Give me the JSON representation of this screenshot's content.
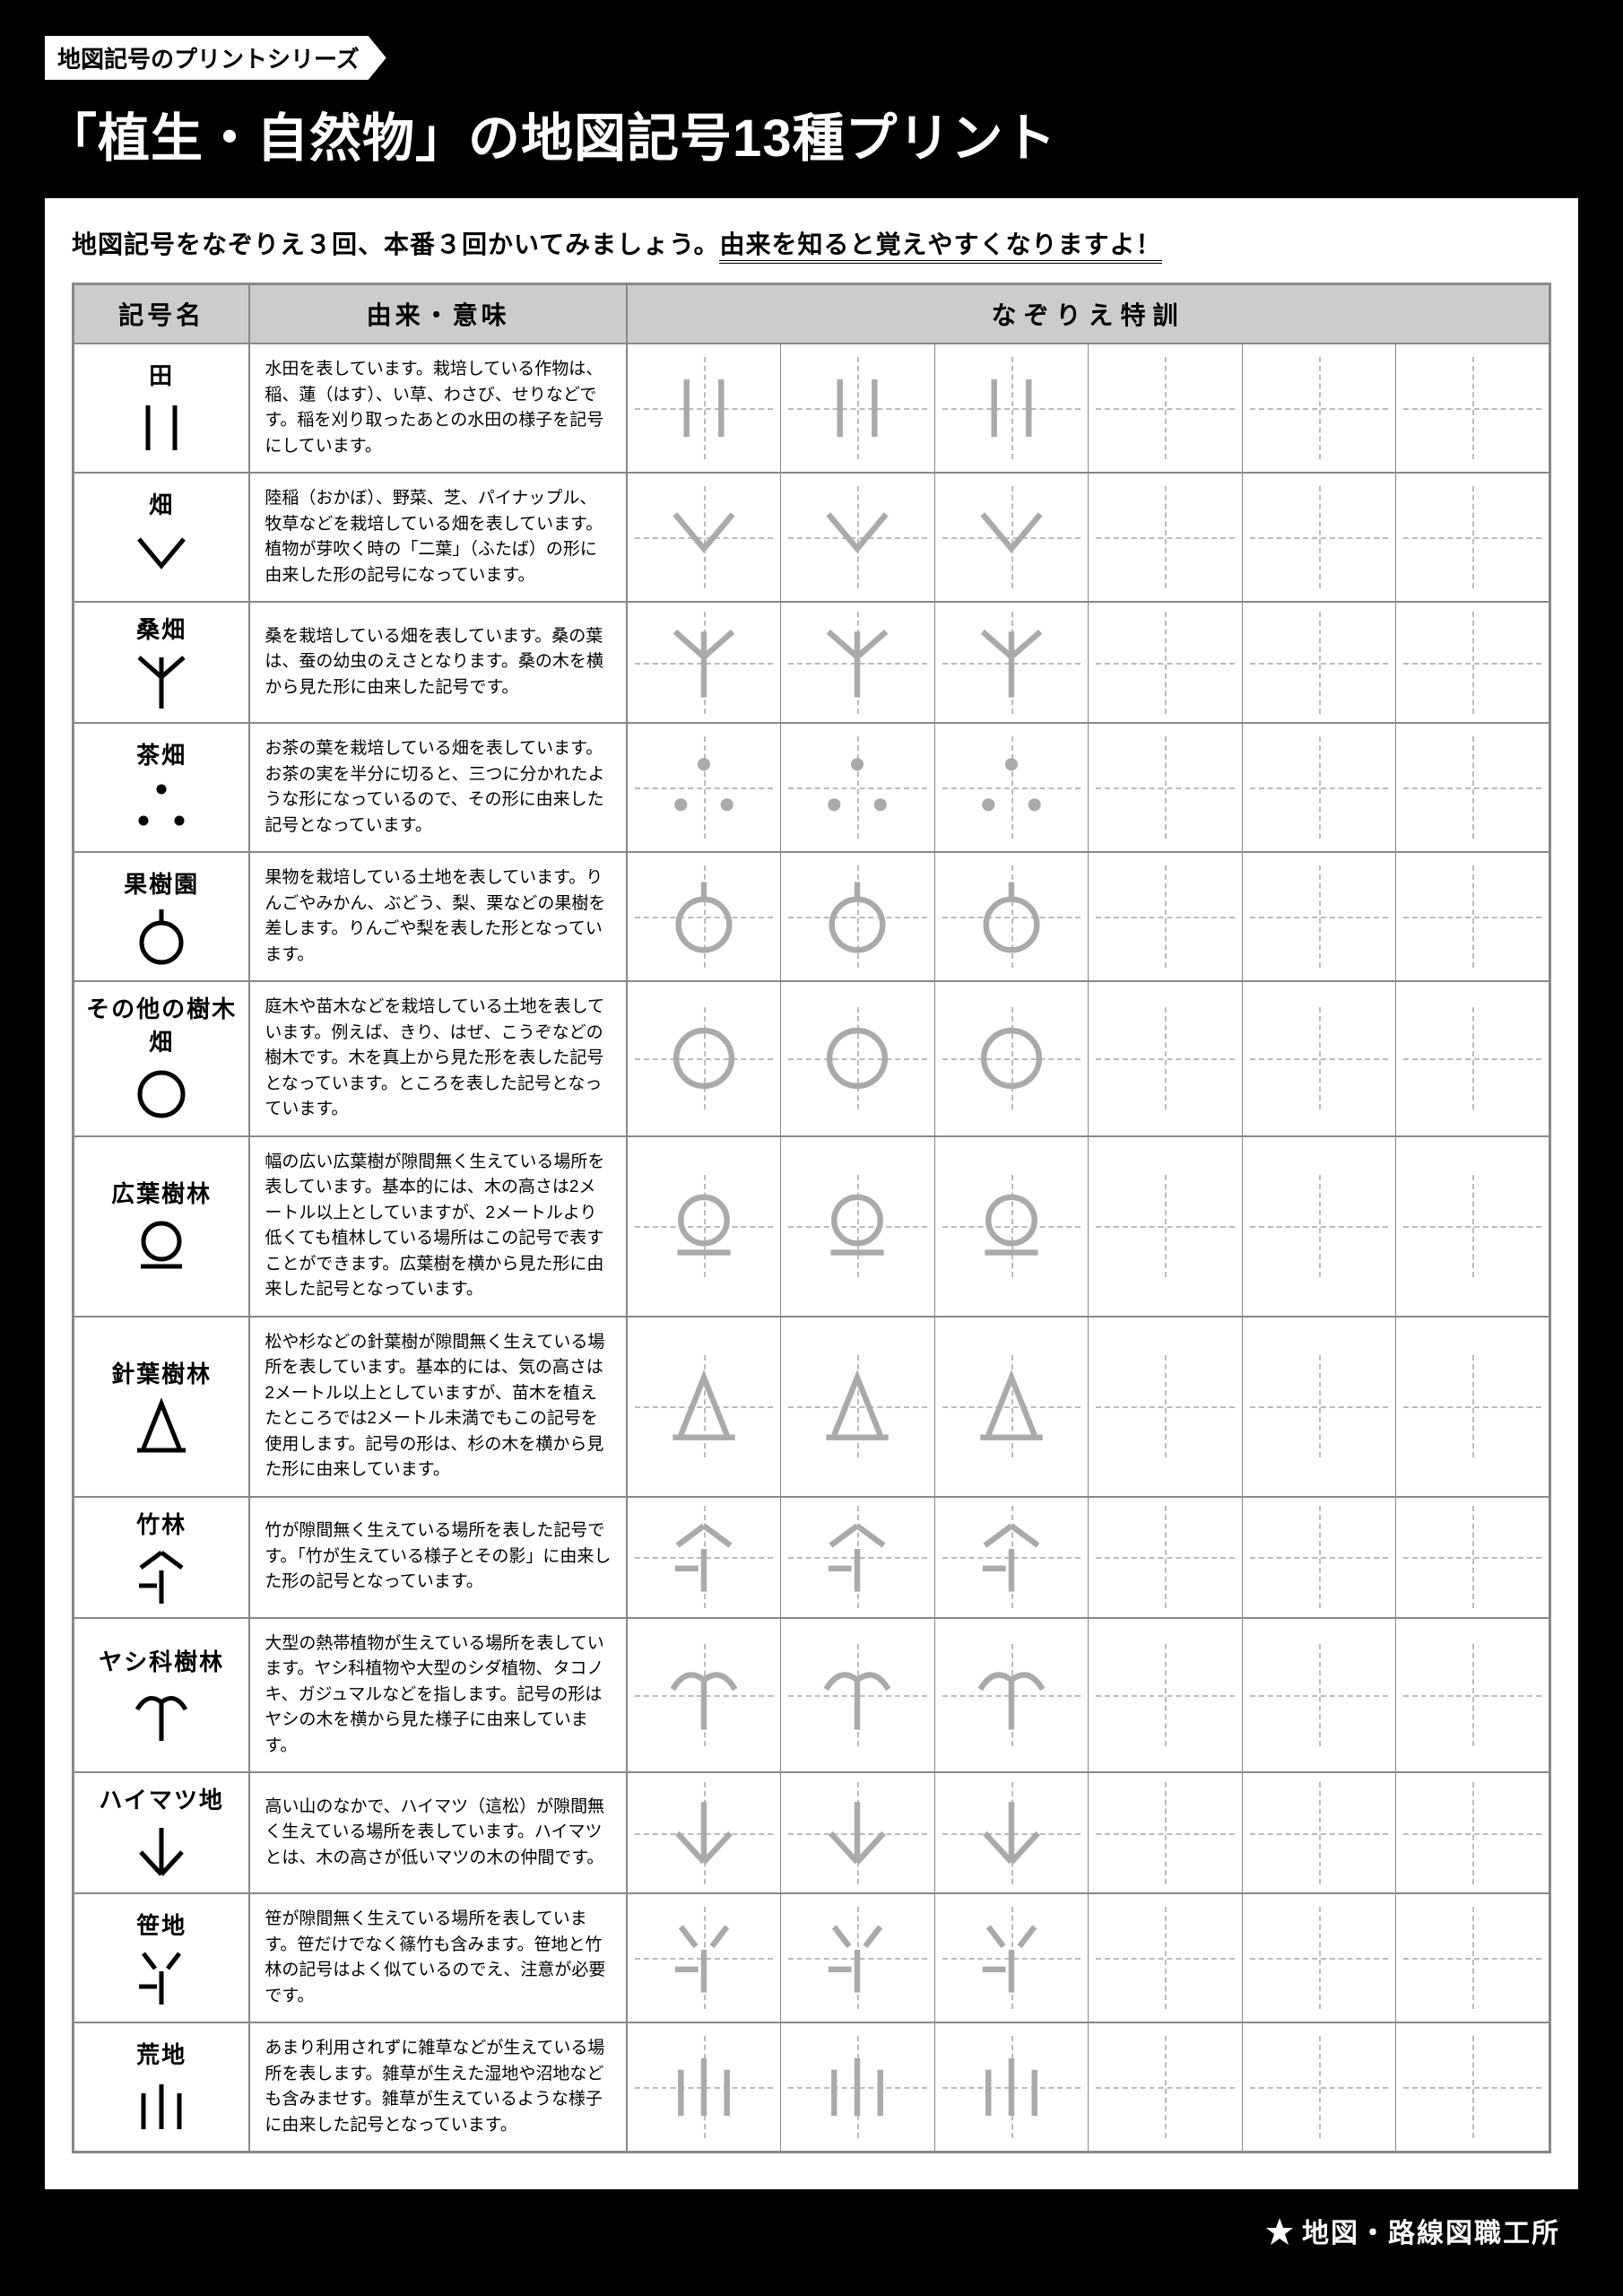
{
  "series_tag": "地図記号のプリントシリーズ",
  "main_title_prefix": "「",
  "main_title_core": "植生・自然物",
  "main_title_suffix": "」の地図記号13種プリント",
  "instruction_plain": "地図記号をなぞりえ３回、本番３回かいてみましょう。",
  "instruction_underline": "由来を知ると覚えやすくなりますよ！",
  "headers": {
    "symbol": "記号名",
    "meaning": "由来・意味",
    "practice": "なぞりえ特訓"
  },
  "footer": "地図・路線図職工所",
  "colors": {
    "symbol_stroke": "#000000",
    "practice_stroke": "#aaaaaa",
    "guide_dash": "#bbbbbb",
    "header_bg": "#cccccc",
    "border": "#888888"
  },
  "rows": [
    {
      "name": "田",
      "svg": "ta",
      "meaning": "水田を表しています。栽培している作物は、稲、蓮（はす）、い草、わさび、せりなどです。稲を刈り取ったあとの水田の様子を記号にしています。"
    },
    {
      "name": "畑",
      "svg": "hatake",
      "meaning": "陸稲（おかぼ）、野菜、芝、パイナップル、牧草などを栽培している畑を表しています。植物が芽吹く時の「二葉」（ふたば）の形に由来した形の記号になっています。"
    },
    {
      "name": "桑畑",
      "svg": "kuwa",
      "meaning": "桑を栽培している畑を表しています。桑の葉は、蚕の幼虫のえさとなります。桑の木を横から見た形に由来した記号です。"
    },
    {
      "name": "茶畑",
      "svg": "cha",
      "meaning": "お茶の葉を栽培している畑を表しています。お茶の実を半分に切ると、三つに分かれたような形になっているので、その形に由来した記号となっています。"
    },
    {
      "name": "果樹園",
      "svg": "kaju",
      "meaning": "果物を栽培している土地を表しています。りんごやみかん、ぶどう、梨、栗などの果樹を差します。りんごや梨を表した形となっています。"
    },
    {
      "name": "その他の樹木畑",
      "svg": "sonota",
      "meaning": "庭木や苗木などを栽培している土地を表しています。例えば、きり、はぜ、こうぞなどの樹木です。木を真上から見た形を表した記号となっています。ところを表した記号となっています。"
    },
    {
      "name": "広葉樹林",
      "svg": "koyo",
      "meaning": "幅の広い広葉樹が隙間無く生えている場所を表しています。基本的には、木の高さは2メートル以上としていますが、2メートルより低くても植林している場所はこの記号で表すことができます。広葉樹を横から見た形に由来した記号となっています。"
    },
    {
      "name": "針葉樹林",
      "svg": "shinyou",
      "meaning": "松や杉などの針葉樹が隙間無く生えている場所を表しています。基本的には、気の高さは2メートル以上としていますが、苗木を植えたところでは2メートル未満でもこの記号を使用します。記号の形は、杉の木を横から見た形に由来しています。"
    },
    {
      "name": "竹林",
      "svg": "take",
      "meaning": "竹が隙間無く生えている場所を表した記号です。「竹が生えている様子とその影」に由来した形の記号となっています。"
    },
    {
      "name": "ヤシ科樹林",
      "svg": "yashi",
      "meaning": "大型の熱帯植物が生えている場所を表しています。ヤシ科植物や大型のシダ植物、タコノキ、ガジュマルなどを指します。記号の形はヤシの木を横から見た様子に由来しています。"
    },
    {
      "name": "ハイマツ地",
      "svg": "haimatsu",
      "meaning": "高い山のなかで、ハイマツ（這松）が隙間無く生えている場所を表しています。ハイマツとは、木の高さが低いマツの木の仲間です。"
    },
    {
      "name": "笹地",
      "svg": "sasa",
      "meaning": "笹が隙間無く生えている場所を表しています。笹だけでなく篠竹も含みます。笹地と竹林の記号はよく似ているのでえ、注意が必要です。"
    },
    {
      "name": "荒地",
      "svg": "arechi",
      "meaning": "あまり利用されずに雑草などが生えている場所を表します。雑草が生えた湿地や沼地なども含みませす。雑草が生えているような様子に由来した記号となっています。"
    }
  ]
}
